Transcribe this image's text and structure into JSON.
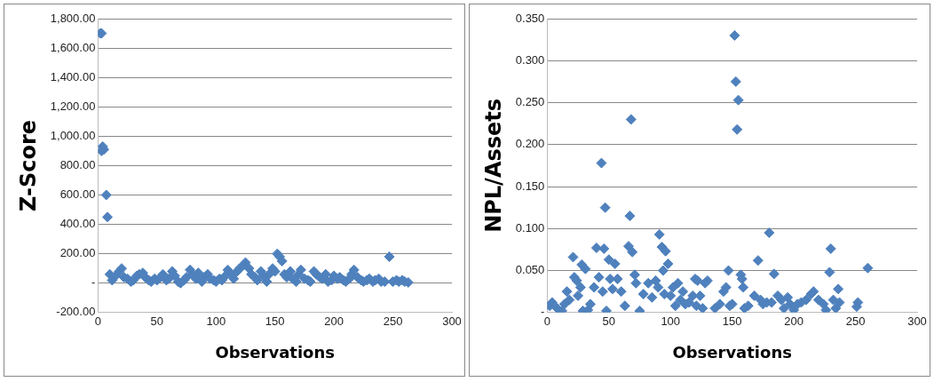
{
  "chart_data": [
    {
      "type": "scatter",
      "xlabel": "Observations",
      "ylabel": "Z-Score",
      "color": "#4f81bd",
      "marker": "diamond",
      "grid": "y",
      "xlim": [
        0,
        300
      ],
      "xticks": [
        0,
        50,
        100,
        150,
        200,
        250,
        300
      ],
      "ylim": [
        -200,
        1800
      ],
      "yticks": [
        {
          "value": -200,
          "label": "-200.00"
        },
        {
          "value": 0,
          "label": "-"
        },
        {
          "value": 200,
          "label": "200.00"
        },
        {
          "value": 400,
          "label": "400.00"
        },
        {
          "value": 600,
          "label": "600.00"
        },
        {
          "value": 800,
          "label": "800.00"
        },
        {
          "value": 1000,
          "label": "1,000.00"
        },
        {
          "value": 1200,
          "label": "1,200.00"
        },
        {
          "value": 1400,
          "label": "1,400.00"
        },
        {
          "value": 1600,
          "label": "1,600.00"
        },
        {
          "value": 1800,
          "label": "1,800.00"
        }
      ],
      "x": [
        2,
        3,
        3,
        4,
        5,
        7,
        8,
        10,
        12,
        15,
        18,
        20,
        22,
        25,
        28,
        30,
        33,
        35,
        38,
        40,
        43,
        45,
        48,
        50,
        53,
        55,
        58,
        60,
        63,
        65,
        68,
        70,
        73,
        75,
        78,
        80,
        83,
        85,
        88,
        90,
        93,
        95,
        98,
        100,
        103,
        105,
        108,
        110,
        113,
        115,
        118,
        120,
        123,
        125,
        128,
        130,
        133,
        135,
        138,
        140,
        143,
        145,
        148,
        150,
        152,
        154,
        156,
        158,
        160,
        163,
        165,
        168,
        170,
        172,
        175,
        178,
        180,
        183,
        185,
        188,
        190,
        193,
        195,
        198,
        200,
        203,
        205,
        208,
        210,
        213,
        215,
        217,
        220,
        223,
        225,
        228,
        230,
        233,
        235,
        238,
        240,
        243,
        247,
        250,
        253,
        255,
        258,
        260,
        263
      ],
      "values": [
        1700,
        1700,
        900,
        930,
        910,
        600,
        450,
        60,
        20,
        50,
        80,
        100,
        40,
        30,
        10,
        20,
        50,
        60,
        70,
        40,
        20,
        10,
        30,
        20,
        40,
        60,
        20,
        30,
        80,
        50,
        10,
        0,
        20,
        40,
        90,
        60,
        30,
        70,
        10,
        40,
        60,
        30,
        20,
        10,
        30,
        20,
        50,
        90,
        60,
        30,
        80,
        100,
        120,
        140,
        100,
        60,
        40,
        20,
        80,
        50,
        10,
        60,
        100,
        80,
        200,
        180,
        150,
        60,
        40,
        80,
        30,
        10,
        60,
        90,
        30,
        20,
        10,
        80,
        60,
        40,
        30,
        60,
        10,
        20,
        50,
        30,
        40,
        20,
        10,
        30,
        60,
        90,
        40,
        20,
        10,
        20,
        30,
        10,
        20,
        30,
        10,
        10,
        180,
        10,
        20,
        10,
        20,
        10,
        5
      ]
    },
    {
      "type": "scatter",
      "xlabel": "Observations",
      "ylabel": "NPL/Assets",
      "color": "#4f81bd",
      "marker": "diamond",
      "grid": "y",
      "xlim": [
        0,
        300
      ],
      "xticks": [
        0,
        50,
        100,
        150,
        200,
        250,
        300
      ],
      "ylim": [
        0,
        0.35
      ],
      "yticks": [
        {
          "value": 0,
          "label": "-"
        },
        {
          "value": 0.05,
          "label": "0.050"
        },
        {
          "value": 0.1,
          "label": "0.100"
        },
        {
          "value": 0.15,
          "label": "0.150"
        },
        {
          "value": 0.2,
          "label": "0.200"
        },
        {
          "value": 0.25,
          "label": "0.250"
        },
        {
          "value": 0.3,
          "label": "0.300"
        },
        {
          "value": 0.35,
          "label": "0.350"
        }
      ],
      "x": [
        2,
        4,
        8,
        12,
        14,
        16,
        18,
        21,
        22,
        24,
        25,
        27,
        28,
        29,
        31,
        33,
        35,
        38,
        40,
        42,
        44,
        45,
        46,
        47,
        48,
        50,
        51,
        53,
        55,
        57,
        60,
        63,
        66,
        67,
        68,
        69,
        71,
        72,
        75,
        78,
        82,
        85,
        88,
        90,
        91,
        93,
        94,
        95,
        96,
        98,
        100,
        102,
        104,
        106,
        108,
        110,
        112,
        115,
        118,
        120,
        121,
        122,
        124,
        126,
        128,
        130,
        136,
        140,
        143,
        145,
        147,
        148,
        150,
        152,
        153,
        154,
        155,
        157,
        158,
        159,
        160,
        163,
        168,
        171,
        173,
        175,
        178,
        180,
        182,
        184,
        187,
        190,
        192,
        195,
        197,
        200,
        203,
        206,
        210,
        214,
        216,
        220,
        224,
        226,
        229,
        230,
        232,
        234,
        236,
        237,
        251,
        252,
        260
      ],
      "values": [
        0.008,
        0.012,
        0.005,
        0.002,
        0.01,
        0.025,
        0.015,
        0.066,
        0.042,
        0.038,
        0.02,
        0.03,
        0.057,
        0.002,
        0.052,
        0.003,
        0.01,
        0.03,
        0.077,
        0.042,
        0.178,
        0.025,
        0.076,
        0.125,
        0.002,
        0.063,
        0.04,
        0.028,
        0.058,
        0.04,
        0.025,
        0.008,
        0.079,
        0.115,
        0.23,
        0.072,
        0.045,
        0.035,
        0.002,
        0.022,
        0.035,
        0.018,
        0.038,
        0.03,
        0.093,
        0.078,
        0.05,
        0.022,
        0.073,
        0.058,
        0.02,
        0.03,
        0.008,
        0.035,
        0.015,
        0.025,
        0.01,
        0.012,
        0.02,
        0.04,
        0.008,
        0.038,
        0.02,
        0.005,
        0.035,
        0.038,
        0.005,
        0.01,
        0.025,
        0.03,
        0.05,
        0.008,
        0.01,
        0.33,
        0.275,
        0.218,
        0.253,
        0.045,
        0.04,
        0.03,
        0.005,
        0.008,
        0.02,
        0.062,
        0.015,
        0.01,
        0.012,
        0.095,
        0.012,
        0.046,
        0.02,
        0.015,
        0.005,
        0.018,
        0.01,
        0.003,
        0.01,
        0.012,
        0.015,
        0.022,
        0.025,
        0.015,
        0.01,
        0.003,
        0.048,
        0.076,
        0.015,
        0.005,
        0.028,
        0.012,
        0.007,
        0.012,
        0.053
      ]
    }
  ]
}
